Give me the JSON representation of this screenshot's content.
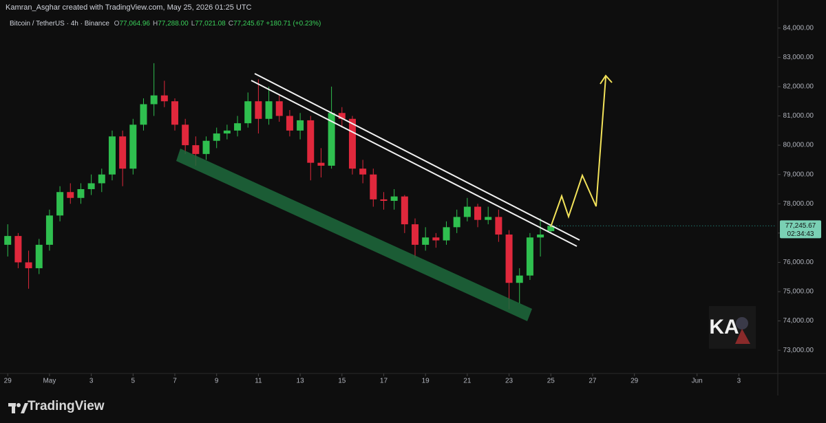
{
  "header": "Kamran_Asghar created with TradingView.com, May 25, 2026 01:25 UTC",
  "legend": {
    "symbol": "Bitcoin / TetherUS · 4h · Binance",
    "items": [
      {
        "key": "O",
        "value": "77,064.96"
      },
      {
        "key": "H",
        "value": "77,288.00"
      },
      {
        "key": "L",
        "value": "77,021.08"
      },
      {
        "key": "C",
        "value": "77,245.67"
      }
    ],
    "change": "+180.71 (+0.23%)"
  },
  "last_price": {
    "price": "77,245.67",
    "countdown": "02:34:43"
  },
  "watermark": "KA",
  "footer": "TradingView",
  "chart_data": {
    "type": "candlestick",
    "up_color": "#2fbf4f",
    "down_color": "#e0283c",
    "x": [
      -1,
      -0.5,
      0,
      0.5,
      1,
      1.5,
      2,
      2.5,
      3,
      3.5,
      4,
      4.5,
      5,
      5.5,
      6,
      6.5,
      7,
      7.5,
      8,
      8.5,
      9,
      9.5,
      10,
      10.5,
      11,
      11.5,
      12,
      12.5,
      13,
      13.5,
      14,
      14.5,
      15,
      15.5,
      16,
      16.5,
      17,
      17.5,
      18,
      18.5,
      19,
      19.5,
      20,
      20.5,
      21,
      21.5,
      22,
      22.5,
      23,
      23.5,
      24,
      24.5,
      25
    ],
    "open": [
      76600,
      76900,
      76000,
      75800,
      76600,
      77600,
      78400,
      78200,
      78500,
      78700,
      79000,
      80300,
      79200,
      80700,
      81400,
      81700,
      81500,
      80700,
      80000,
      79700,
      80150,
      80400,
      80500,
      80750,
      81500,
      80900,
      81500,
      81000,
      80500,
      80850,
      79400,
      79300,
      81100,
      80900,
      79200,
      79000,
      78150,
      78100,
      78250,
      77300,
      76600,
      76850,
      76750,
      77200,
      77550,
      77900,
      77450,
      77550,
      76950,
      75300,
      75550,
      76850,
      77064.96
    ],
    "high": [
      77300,
      77000,
      76400,
      76800,
      77800,
      78600,
      78700,
      78700,
      79000,
      79200,
      80500,
      80500,
      80900,
      81600,
      82800,
      82200,
      81600,
      80900,
      80300,
      80300,
      80600,
      80700,
      81000,
      81800,
      82250,
      82000,
      81700,
      81200,
      81100,
      81000,
      79900,
      82000,
      81300,
      81000,
      79500,
      79200,
      78400,
      78500,
      78300,
      77500,
      77200,
      77000,
      77400,
      77800,
      78200,
      78000,
      77900,
      77800,
      77100,
      75800,
      77000,
      77500,
      77288.0
    ],
    "low": [
      76200,
      75800,
      75100,
      75600,
      76400,
      77400,
      78000,
      78000,
      78300,
      78400,
      78800,
      78600,
      79000,
      80500,
      81000,
      81300,
      80500,
      79700,
      79300,
      79500,
      79900,
      80200,
      80300,
      80600,
      80400,
      80700,
      80800,
      80300,
      80200,
      78800,
      78900,
      79200,
      80600,
      79000,
      78700,
      77900,
      77800,
      77800,
      77000,
      76150,
      76400,
      76500,
      76600,
      77000,
      77400,
      77200,
      77300,
      76700,
      74400,
      74600,
      75400,
      76200,
      77021.08
    ],
    "close": [
      76900,
      76000,
      75800,
      76600,
      77600,
      78400,
      78200,
      78500,
      78700,
      79000,
      80300,
      79200,
      80700,
      81400,
      81700,
      81500,
      80700,
      80000,
      79700,
      80150,
      80400,
      80500,
      80750,
      81500,
      80900,
      81500,
      81000,
      80500,
      80850,
      79400,
      79300,
      81100,
      80900,
      79200,
      79000,
      78150,
      78100,
      78250,
      77300,
      76600,
      76850,
      76750,
      77200,
      77550,
      77900,
      77450,
      77550,
      76950,
      75300,
      75550,
      76850,
      76950,
      77245.67
    ],
    "xlim": [
      -1.37,
      35.8
    ],
    "xticks": [
      {
        "value": -1,
        "label": "29"
      },
      {
        "value": 1,
        "label": "May"
      },
      3,
      5,
      7,
      9,
      11,
      13,
      15,
      17,
      19,
      21,
      23,
      25,
      27,
      29,
      {
        "value": 32,
        "label": "Jun"
      },
      {
        "value": 34,
        "label": "3"
      }
    ],
    "ylim": [
      72300,
      84300
    ],
    "yticks": [
      {
        "value": 73000,
        "label": "73,000.00"
      },
      {
        "value": 74000,
        "label": "74,000.00"
      },
      {
        "value": 75000,
        "label": "75,000.00"
      },
      {
        "value": 76000,
        "label": "76,000.00"
      },
      {
        "value": 77000,
        "label": "77,000.00"
      },
      {
        "value": 78000,
        "label": "78,000.00"
      },
      {
        "value": 79000,
        "label": "79,000.00"
      },
      {
        "value": 80000,
        "label": "80,000.00"
      },
      {
        "value": 81000,
        "label": "81,000.00"
      },
      {
        "value": 82000,
        "label": "82,000.00"
      },
      {
        "value": 83000,
        "label": "83,000.00"
      },
      {
        "value": 84000,
        "label": "84,000.00"
      }
    ]
  }
}
